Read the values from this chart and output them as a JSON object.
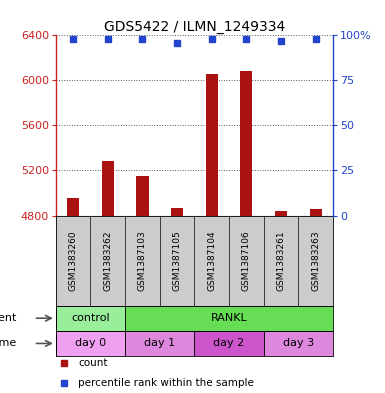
{
  "title": "GDS5422 / ILMN_1249334",
  "samples": [
    "GSM1383260",
    "GSM1383262",
    "GSM1387103",
    "GSM1387105",
    "GSM1387104",
    "GSM1387106",
    "GSM1383261",
    "GSM1383263"
  ],
  "counts": [
    4960,
    5280,
    5150,
    4870,
    6060,
    6080,
    4840,
    4860
  ],
  "percentile_ranks": [
    98,
    98,
    98,
    96,
    98,
    98,
    97,
    98
  ],
  "ylim_left": [
    4800,
    6400
  ],
  "yticks_left": [
    4800,
    5200,
    5600,
    6000,
    6400
  ],
  "ylim_right": [
    0,
    100
  ],
  "yticks_right": [
    0,
    25,
    50,
    75,
    100
  ],
  "bar_color": "#aa1111",
  "dot_color": "#2244cc",
  "agent_labels": [
    {
      "label": "control",
      "start": 0,
      "end": 2,
      "color": "#99ee99"
    },
    {
      "label": "RANKL",
      "start": 2,
      "end": 8,
      "color": "#66dd55"
    }
  ],
  "time_labels": [
    {
      "label": "day 0",
      "start": 0,
      "end": 2,
      "color": "#f0a0f0"
    },
    {
      "label": "day 1",
      "start": 2,
      "end": 4,
      "color": "#dd88dd"
    },
    {
      "label": "day 2",
      "start": 4,
      "end": 6,
      "color": "#cc55cc"
    },
    {
      "label": "day 3",
      "start": 6,
      "end": 8,
      "color": "#dd88dd"
    }
  ],
  "background_color": "#ffffff",
  "grid_color": "#555555",
  "sample_bg_color": "#cccccc",
  "legend_items": [
    {
      "label": "count",
      "color": "#aa1111"
    },
    {
      "label": "percentile rank within the sample",
      "color": "#2244cc"
    }
  ]
}
